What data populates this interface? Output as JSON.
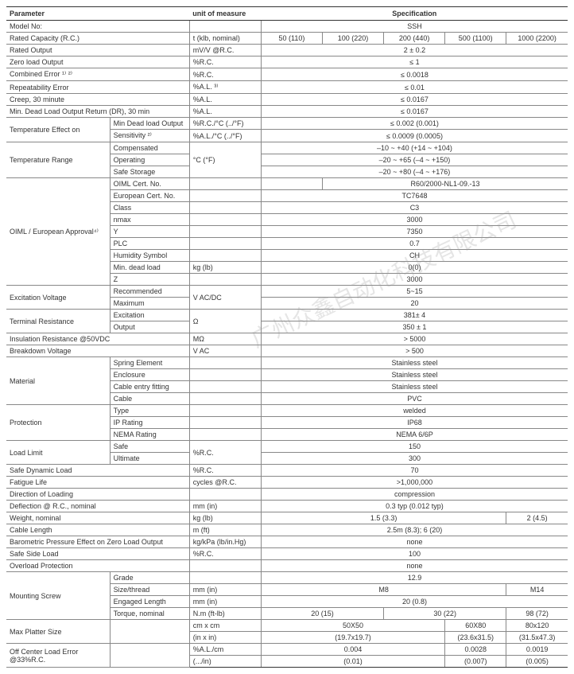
{
  "header": {
    "parameter": "Parameter",
    "unit": "unit of measure",
    "spec": "Specification"
  },
  "watermark": "广州众鑫自动化科技有限公司",
  "colors": {
    "border": "#333",
    "gridline": "#888",
    "text": "#333",
    "background": "#ffffff"
  },
  "rows": [
    {
      "p": "Model No:",
      "s": "",
      "u": "",
      "vals": [
        "SSH"
      ],
      "spans": [
        5
      ]
    },
    {
      "p": "Rated Capacity (R.C.)",
      "s": "",
      "u": "t (klb, nominal)",
      "vals": [
        "50 (110)",
        "100 (220)",
        "200 (440)",
        "500 (1100)",
        "1000 (2200)"
      ],
      "spans": [
        1,
        1,
        1,
        1,
        1
      ]
    },
    {
      "p": "Rated Output",
      "s": "",
      "u": "mV/V @R.C.",
      "vals": [
        "2 ± 0.2"
      ],
      "spans": [
        5
      ]
    },
    {
      "p": "Zero load Output",
      "s": "",
      "u": "%R.C.",
      "vals": [
        "≤ 1"
      ],
      "spans": [
        5
      ]
    },
    {
      "p": "Combined Error ¹⁾ ²⁾",
      "s": "",
      "u": "%R.C.",
      "vals": [
        "≤ 0.0018"
      ],
      "spans": [
        5
      ]
    },
    {
      "p": "Repeatability Error",
      "s": "",
      "u": "%A.L. ³⁾",
      "vals": [
        "≤ 0.01"
      ],
      "spans": [
        5
      ]
    },
    {
      "p": "Creep, 30 minute",
      "s": "",
      "u": "%A.L.",
      "vals": [
        "≤ 0.0167"
      ],
      "spans": [
        5
      ]
    },
    {
      "p": "Min. Dead Load Output Return (DR), 30 min",
      "s": "",
      "u": "%A.L.",
      "vals": [
        "≤ 0.0167"
      ],
      "spans": [
        5
      ]
    },
    {
      "p": "Temperature Effect on",
      "prows": 2,
      "s": "Min Dead load Output",
      "u": "%R.C./°C (../°F)",
      "vals": [
        "≤ 0.002 (0.001)"
      ],
      "spans": [
        5
      ]
    },
    {
      "s": "Sensitivity ²⁾",
      "u": "%A.L./°C (../°F)",
      "vals": [
        "≤ 0.0009 (0.0005)"
      ],
      "spans": [
        5
      ]
    },
    {
      "p": "Temperature Range",
      "prows": 3,
      "s": "Compensated",
      "u": "°C (°F)",
      "urows": 3,
      "vals": [
        "–10 ~ +40 (+14 ~ +104)"
      ],
      "spans": [
        5
      ]
    },
    {
      "s": "Operating",
      "vals": [
        "–20 ~ +65 (–4 ~ +150)"
      ],
      "spans": [
        5
      ]
    },
    {
      "s": "Safe Storage",
      "vals": [
        "–20 ~ +80 (–4 ~ +176)"
      ],
      "spans": [
        5
      ]
    },
    {
      "p": "OIML / European Approval⁴⁾",
      "prows": 9,
      "s": "OIML Cert. No.",
      "u": "",
      "vals": [
        "",
        "R60/2000-NL1-09.-13"
      ],
      "spans": [
        1,
        4
      ]
    },
    {
      "s": "European Cert. No.",
      "u": "",
      "vals": [
        "TC7648"
      ],
      "spans": [
        5
      ]
    },
    {
      "s": "Class",
      "u": "",
      "vals": [
        "C3"
      ],
      "spans": [
        5
      ]
    },
    {
      "s": "nmax",
      "u": "",
      "vals": [
        "3000"
      ],
      "spans": [
        5
      ]
    },
    {
      "s": "Y",
      "u": "",
      "vals": [
        "7350"
      ],
      "spans": [
        5
      ]
    },
    {
      "s": "PLC",
      "u": "",
      "vals": [
        "0.7"
      ],
      "spans": [
        5
      ]
    },
    {
      "s": "Humidity Symbol",
      "u": "",
      "vals": [
        "CH"
      ],
      "spans": [
        5
      ]
    },
    {
      "s": "Min. dead load",
      "u": "kg (lb)",
      "vals": [
        "0(0)"
      ],
      "spans": [
        5
      ]
    },
    {
      "s": "Z",
      "u": "",
      "vals": [
        "3000"
      ],
      "spans": [
        5
      ]
    },
    {
      "p": "Excitation Voltage",
      "prows": 2,
      "s": "Recommended",
      "u": "V AC/DC",
      "urows": 2,
      "vals": [
        "5~15"
      ],
      "spans": [
        5
      ]
    },
    {
      "s": "Maximum",
      "vals": [
        "20"
      ],
      "spans": [
        5
      ]
    },
    {
      "p": "Terminal Resistance",
      "prows": 2,
      "s": "Excitation",
      "u": "Ω",
      "urows": 2,
      "vals": [
        "381± 4"
      ],
      "spans": [
        5
      ]
    },
    {
      "s": "Output",
      "vals": [
        "350 ± 1"
      ],
      "spans": [
        5
      ]
    },
    {
      "p": "Insulation Resistance @50VDC",
      "s": "",
      "u": "MΩ",
      "vals": [
        "> 5000"
      ],
      "spans": [
        5
      ]
    },
    {
      "p": "Breakdown Voltage",
      "s": "",
      "u": "V AC",
      "vals": [
        "> 500"
      ],
      "spans": [
        5
      ]
    },
    {
      "p": "Material",
      "prows": 4,
      "s": "Spring Element",
      "u": "",
      "vals": [
        "Stainless steel"
      ],
      "spans": [
        5
      ]
    },
    {
      "s": "Enclosure",
      "u": "",
      "vals": [
        "Stainless steel"
      ],
      "spans": [
        5
      ]
    },
    {
      "s": "Cable entry fitting",
      "u": "",
      "vals": [
        "Stainless steel"
      ],
      "spans": [
        5
      ]
    },
    {
      "s": "Cable",
      "u": "",
      "vals": [
        "PVC"
      ],
      "spans": [
        5
      ]
    },
    {
      "p": "Protection",
      "prows": 3,
      "s": "Type",
      "u": "",
      "vals": [
        "welded"
      ],
      "spans": [
        5
      ]
    },
    {
      "s": "IP Rating",
      "u": "",
      "vals": [
        "IP68"
      ],
      "spans": [
        5
      ]
    },
    {
      "s": "NEMA Rating",
      "u": "",
      "vals": [
        "NEMA 6/6P"
      ],
      "spans": [
        5
      ]
    },
    {
      "p": "Load Limit",
      "prows": 2,
      "s": "Safe",
      "u": "%R.C.",
      "urows": 2,
      "vals": [
        "150"
      ],
      "spans": [
        5
      ]
    },
    {
      "s": "Ultimate",
      "vals": [
        "300"
      ],
      "spans": [
        5
      ]
    },
    {
      "p": "Safe Dynamic Load",
      "s": "",
      "u": "%R.C.",
      "vals": [
        "70"
      ],
      "spans": [
        5
      ]
    },
    {
      "p": "Fatigue Life",
      "s": "",
      "u": "cycles @R.C.",
      "vals": [
        ">1,000,000"
      ],
      "spans": [
        5
      ]
    },
    {
      "p": "Direction of Loading",
      "s": "",
      "u": "",
      "vals": [
        "compression"
      ],
      "spans": [
        5
      ]
    },
    {
      "p": "Deflection @ R.C., nominal",
      "s": "",
      "u": "mm (in)",
      "vals": [
        "0.3 typ (0.012 typ)"
      ],
      "spans": [
        5
      ]
    },
    {
      "p": "Weight, nominal",
      "s": "",
      "u": "kg (lb)",
      "vals": [
        "1.5 (3.3)",
        "2 (4.5)"
      ],
      "spans": [
        4,
        1
      ]
    },
    {
      "p": "Cable Length",
      "s": "",
      "u": "m (ft)",
      "vals": [
        "2.5m (8.3); 6 (20)"
      ],
      "spans": [
        5
      ]
    },
    {
      "p": "Barometric Pressure Effect on Zero Load Output",
      "s": "",
      "u": "kg/kPa (lb/in.Hg)",
      "vals": [
        "none"
      ],
      "spans": [
        5
      ]
    },
    {
      "p": "Safe Side Load",
      "s": "",
      "u": "%R.C.",
      "vals": [
        "100"
      ],
      "spans": [
        5
      ]
    },
    {
      "p": "Overload Protection",
      "s": "",
      "u": "",
      "vals": [
        "none"
      ],
      "spans": [
        5
      ]
    },
    {
      "p": "Mounting Screw",
      "prows": 4,
      "s": "Grade",
      "u": "",
      "vals": [
        "12.9"
      ],
      "spans": [
        5
      ]
    },
    {
      "s": "Size/thread",
      "u": "mm (in)",
      "vals": [
        "M8",
        "M14"
      ],
      "spans": [
        4,
        1
      ]
    },
    {
      "s": "Engaged Length",
      "u": "mm (in)",
      "vals": [
        "20 (0.8)"
      ],
      "spans": [
        5
      ]
    },
    {
      "s": "Torque, nominal",
      "u": "N.m (ft-lb)",
      "vals": [
        "20 (15)",
        "30 (22)",
        "98 (72)"
      ],
      "spans": [
        2,
        2,
        1
      ]
    },
    {
      "p": "Max Platter Size",
      "s": "",
      "prows": 2,
      "srows": 2,
      "u": "cm x cm",
      "vals": [
        "50X50",
        "60X80",
        "80x120"
      ],
      "spans": [
        3,
        1,
        1
      ]
    },
    {
      "u": "(in x in)",
      "vals": [
        "(19.7x19.7)",
        "(23.6x31.5)",
        "(31.5x47.3)"
      ],
      "spans": [
        3,
        1,
        1
      ]
    },
    {
      "p": "Off Center Load Error @33%R.C.",
      "prows": 2,
      "s": "",
      "srows": 2,
      "u": "%A.L./cm",
      "vals": [
        "0.004",
        "0.0028",
        "0.0019"
      ],
      "spans": [
        3,
        1,
        1
      ]
    },
    {
      "u": "(.../in)",
      "vals": [
        "(0.01)",
        "(0.007)",
        "(0.005)"
      ],
      "spans": [
        3,
        1,
        1
      ],
      "last": true
    }
  ]
}
